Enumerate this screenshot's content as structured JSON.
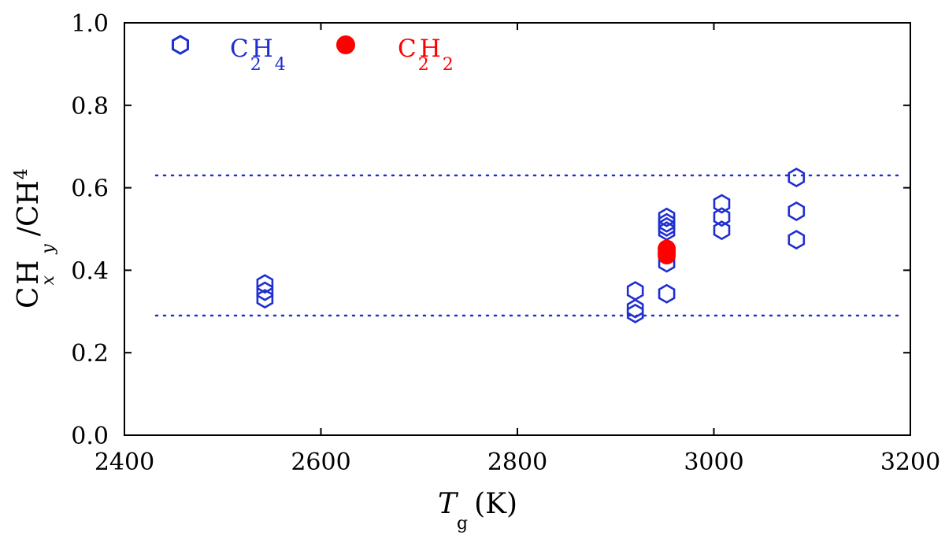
{
  "chart_data": {
    "type": "scatter",
    "xlabel_main": "T",
    "xlabel_sub": "g",
    "xlabel_unit": "(K)",
    "ylabel": {
      "c1": "C",
      "c1_sub": "x",
      "c2": "H",
      "c2_sub": "y",
      "rest": "/CH",
      "rest_sub": "4"
    },
    "xlim": [
      2400,
      3200
    ],
    "ylim": [
      0.0,
      1.0
    ],
    "xticks": [
      "2400",
      "2600",
      "2800",
      "3000",
      "3200"
    ],
    "yticks": [
      "0.0",
      "0.2",
      "0.4",
      "0.6",
      "0.8",
      "1.0"
    ],
    "grid": false,
    "legend_placement": "top-left",
    "reference_lines": [
      0.63,
      0.29
    ],
    "reference_line_color": "#1f2fd0",
    "series": [
      {
        "name": "C2H4",
        "name_parts": {
          "c": "C",
          "c_sub": "2",
          "h": "H",
          "h_sub": "4"
        },
        "marker": "hexagon-open",
        "color": "#1f2fd0",
        "points": [
          [
            2543,
            0.367
          ],
          [
            2543,
            0.349
          ],
          [
            2543,
            0.331
          ],
          [
            2920,
            0.35
          ],
          [
            2920,
            0.307
          ],
          [
            2920,
            0.295
          ],
          [
            2952,
            0.528
          ],
          [
            2952,
            0.515
          ],
          [
            2952,
            0.505
          ],
          [
            2952,
            0.495
          ],
          [
            2952,
            0.418
          ],
          [
            2952,
            0.343
          ],
          [
            3008,
            0.561
          ],
          [
            3008,
            0.529
          ],
          [
            3008,
            0.497
          ],
          [
            3084,
            0.625
          ],
          [
            3084,
            0.543
          ],
          [
            3084,
            0.474
          ]
        ]
      },
      {
        "name": "C2H2",
        "name_parts": {
          "c": "C",
          "c_sub": "2",
          "h": "H",
          "h_sub": "2"
        },
        "marker": "circle-filled",
        "color": "#ff0000",
        "points": [
          [
            2952,
            0.452
          ],
          [
            2952,
            0.443
          ],
          [
            2952,
            0.436
          ]
        ]
      }
    ]
  }
}
